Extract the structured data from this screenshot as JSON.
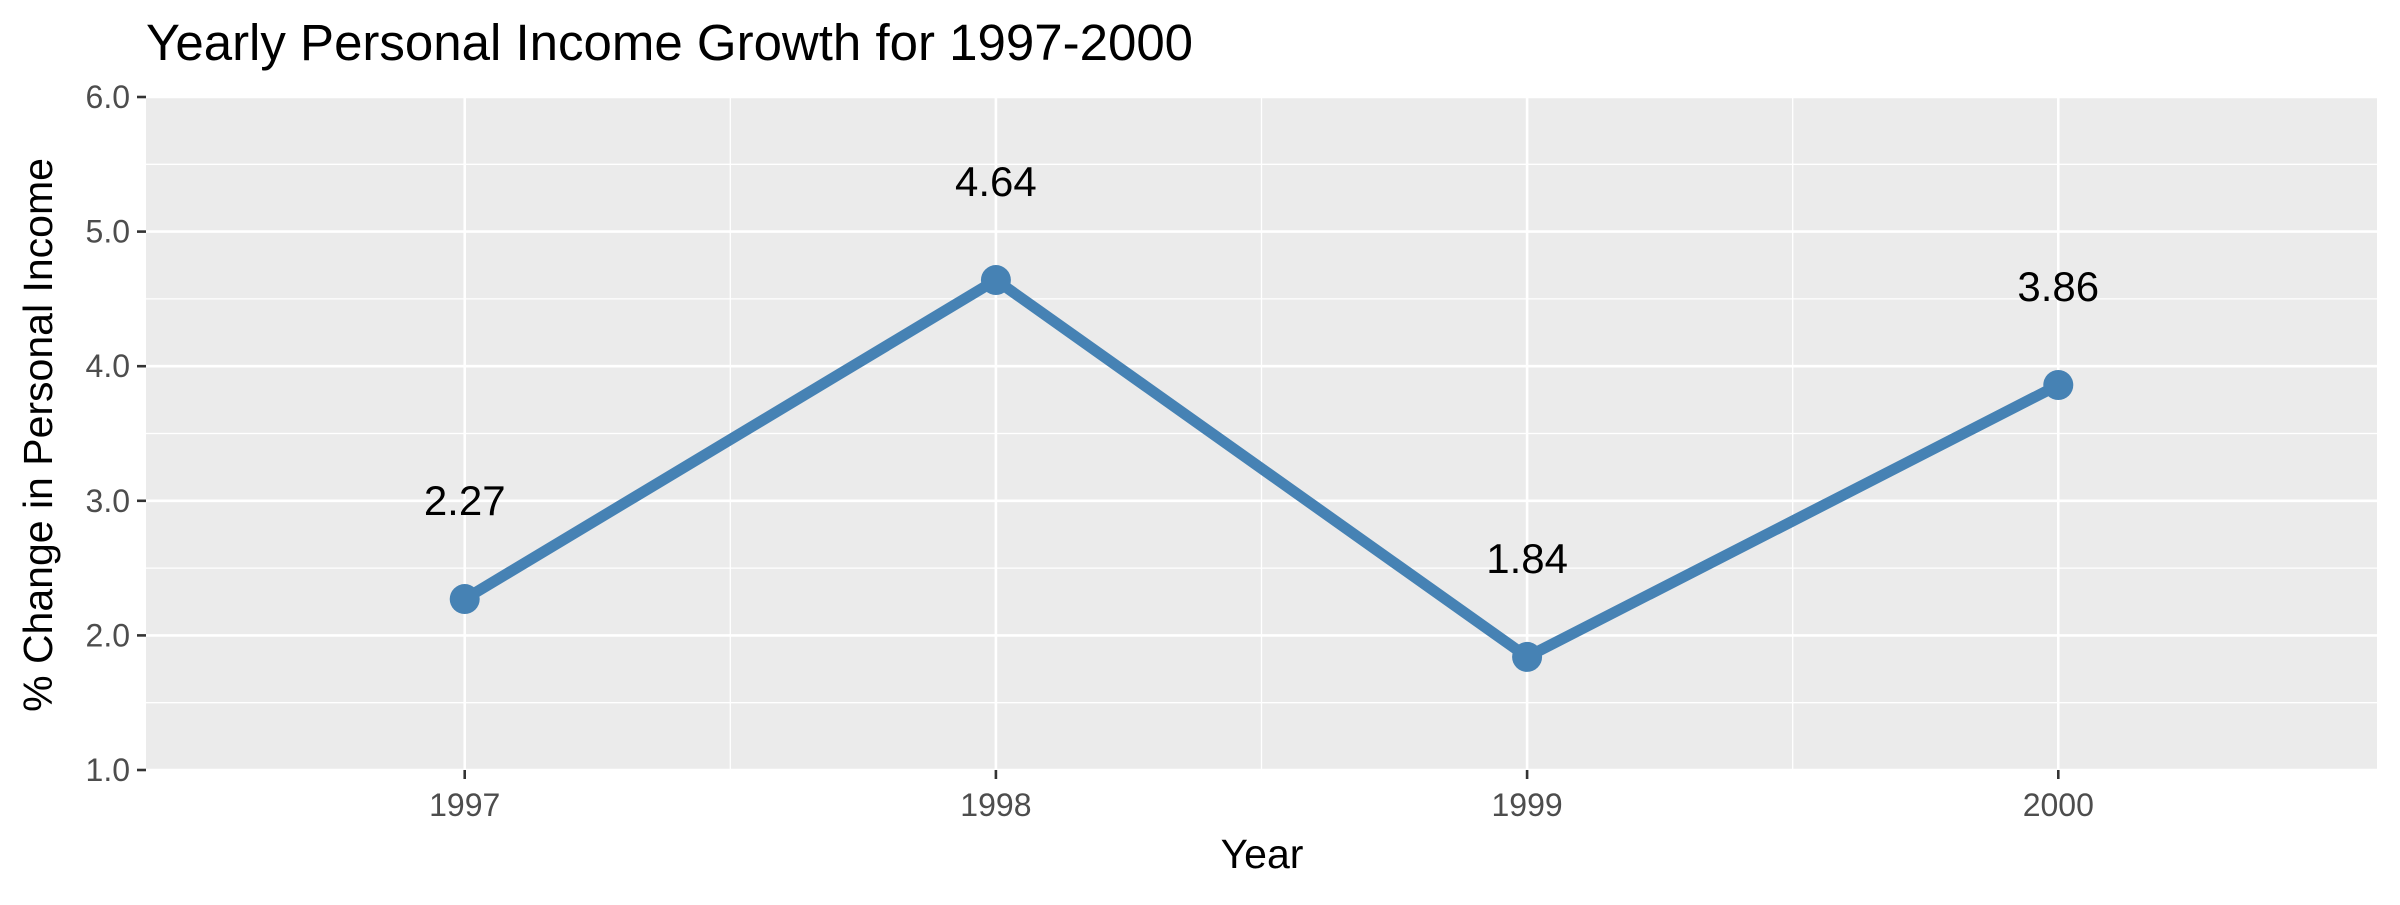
{
  "chart_data": {
    "type": "line",
    "title": "Yearly Personal Income Growth for 1997-2000",
    "xlabel": "Year",
    "ylabel": "% Change in Personal Income",
    "categories": [
      "1997",
      "1998",
      "1999",
      "2000"
    ],
    "series": [
      {
        "values": [
          2.27,
          4.64,
          1.84,
          3.86
        ]
      }
    ],
    "data_labels": [
      "2.27",
      "4.64",
      "1.84",
      "3.86"
    ],
    "ylim": [
      1.0,
      6.0
    ],
    "y_ticks": [
      "1.0",
      "2.0",
      "3.0",
      "4.0",
      "5.0",
      "6.0"
    ],
    "grid": true,
    "legend": "none",
    "colors": {
      "line": "#4682b4",
      "panel": "#ebebeb",
      "grid": "#ffffff"
    }
  }
}
